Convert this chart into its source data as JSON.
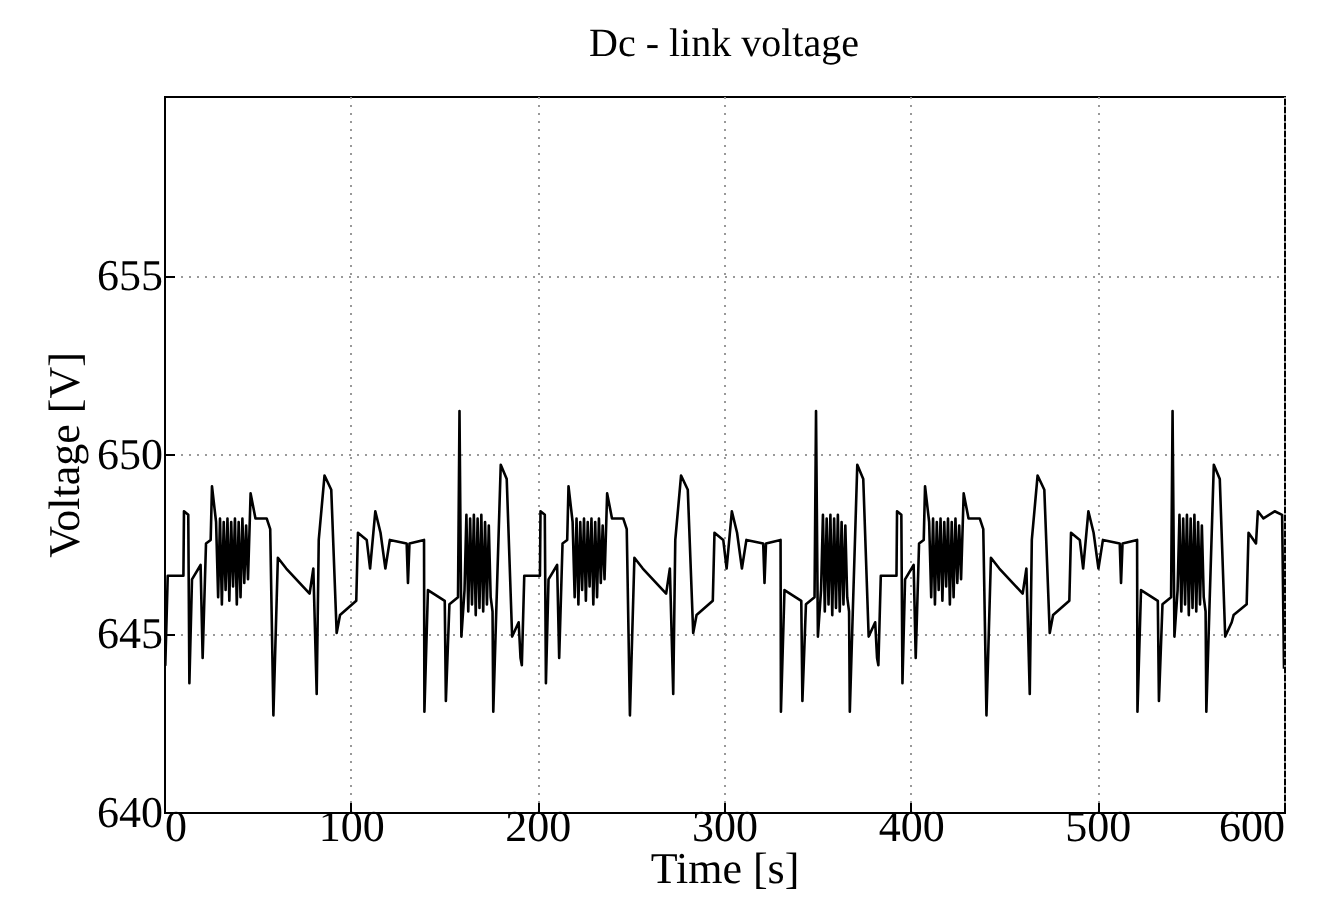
{
  "chart_data": {
    "type": "line",
    "title": "Dc - link voltage",
    "xlabel": "Time [s]",
    "ylabel": "Voltage [V]",
    "xlim": [
      0,
      600
    ],
    "xticks": [
      0,
      100,
      200,
      300,
      400,
      500,
      600
    ],
    "ylim": [
      640,
      660
    ],
    "yticks": [
      640,
      645,
      650,
      655
    ],
    "grid": true,
    "line_style": "solid",
    "series": [
      {
        "color": "#000000",
        "x": [
          0,
          0.7,
          2,
          10.4,
          10.7,
          13,
          13.6,
          15,
          19.6,
          20.7,
          22.5,
          25,
          25.7,
          27.9,
          29,
          30,
          31,
          32,
          33,
          34,
          35,
          36,
          37,
          38,
          39,
          40,
          41,
          42,
          43,
          44,
          45,
          46.4,
          49,
          55,
          56.9,
          58.6,
          61,
          65.5,
          78,
          80,
          81.8,
          82.9,
          86,
          89.6,
          92.5,
          94.3,
          103,
          103.9,
          108.6,
          110.4,
          113.2,
          116,
          118.6,
          121,
          130,
          130.7,
          131.5,
          139.3,
          139.5,
          141.4,
          150.4,
          151,
          152.9,
          157.5,
          158.3,
          159.3,
          161,
          162,
          163,
          164,
          165,
          166,
          167,
          168,
          169,
          170,
          171,
          172,
          173,
          174,
          175,
          176,
          176.4,
          178,
          180.4,
          183.6,
          186.5,
          190,
          191,
          191.7,
          193,
          201.4,
          201.7,
          204,
          204.6,
          206,
          210.6,
          211.7,
          213.5,
          216,
          216.7,
          218.9,
          220,
          221,
          222,
          223,
          224,
          225,
          226,
          227,
          228,
          229,
          230,
          231,
          232,
          233,
          234,
          235,
          236,
          237.4,
          240,
          246,
          247.9,
          249.6,
          252,
          256.5,
          269,
          271,
          272.8,
          273.9,
          277,
          280.6,
          283.5,
          285.3,
          294,
          294.9,
          299.6,
          301.4,
          304.2,
          307,
          309.6,
          312,
          321,
          321.7,
          322.5,
          330.3,
          330.5,
          332.4,
          341.4,
          342,
          343.9,
          348.5,
          349.3,
          350.3,
          352,
          353,
          354,
          355,
          356,
          357,
          358,
          359,
          360,
          361,
          362,
          363,
          364,
          365,
          366,
          367,
          367.4,
          369,
          371.4,
          374.6,
          377.5,
          381,
          382,
          382.7,
          384,
          392.4,
          392.7,
          395,
          395.6,
          397,
          401.6,
          402.7,
          404.5,
          407,
          407.7,
          409.9,
          411,
          412,
          413,
          414,
          415,
          416,
          417,
          418,
          419,
          420,
          421,
          422,
          423,
          424,
          425,
          426,
          427,
          428.4,
          431,
          437,
          438.9,
          440.6,
          443,
          447.5,
          460,
          462,
          463.8,
          464.9,
          468,
          471.6,
          474.5,
          476.3,
          485,
          485.9,
          490.6,
          492.4,
          495.2,
          498,
          500.6,
          503,
          512,
          512.7,
          513.5,
          521.3,
          521.5,
          523.4,
          532.4,
          533,
          534.9,
          539.5,
          540.3,
          541.3,
          543,
          544,
          545,
          546,
          547,
          548,
          549,
          550,
          551,
          552,
          553,
          554,
          555,
          556,
          557,
          558,
          558.4,
          560,
          562.4,
          565.6,
          568.5,
          572,
          573,
          580,
          581,
          585,
          586,
          589,
          595,
          599,
          600
        ],
        "values": [
          644.3,
          644.1,
          646.6,
          646.6,
          648.4,
          648.3,
          643.6,
          646.5,
          646.9,
          644.3,
          647.5,
          647.6,
          649.1,
          648.1,
          646,
          648.2,
          645.8,
          648.1,
          646.2,
          648.2,
          645.9,
          648.1,
          646.3,
          648.2,
          645.8,
          648.1,
          646.0,
          648.2,
          646.4,
          648.0,
          646.5,
          648.9,
          648.2,
          648.2,
          647.9,
          642.7,
          647.1,
          646.8,
          646.1,
          646.8,
          643.3,
          647.6,
          649.4,
          649.0,
          645.0,
          645.5,
          645.9,
          647.8,
          647.6,
          646.8,
          648.4,
          647.8,
          646.8,
          647.6,
          647.5,
          646.4,
          647.5,
          647.6,
          642.8,
          646.2,
          645.9,
          643.1,
          645.8,
          646,
          651.2,
          644.9,
          646.2,
          648.3,
          645.6,
          648.2,
          645.8,
          648.3,
          645.5,
          648.2,
          645.7,
          648.3,
          645.6,
          648.1,
          645.8,
          648.0,
          646.0,
          645.6,
          642.8,
          645.6,
          649.7,
          649.3,
          644.9,
          645.3,
          644.3,
          644.1,
          646.6,
          646.6,
          648.4,
          648.3,
          643.6,
          646.5,
          646.9,
          644.3,
          647.5,
          647.6,
          649.1,
          648.1,
          646,
          648.2,
          645.8,
          648.1,
          646.2,
          648.2,
          645.9,
          648.1,
          646.3,
          648.2,
          645.8,
          648.1,
          646.0,
          648.2,
          646.4,
          648.0,
          646.5,
          648.9,
          648.2,
          648.2,
          647.9,
          642.7,
          647.1,
          646.8,
          646.1,
          646.8,
          643.3,
          647.6,
          649.4,
          649.0,
          645.0,
          645.5,
          645.9,
          647.8,
          647.6,
          646.8,
          648.4,
          647.8,
          646.8,
          647.6,
          647.5,
          646.4,
          647.5,
          647.6,
          642.8,
          646.2,
          645.9,
          643.1,
          645.8,
          646,
          651.2,
          644.9,
          646.2,
          648.3,
          645.6,
          648.2,
          645.8,
          648.3,
          645.5,
          648.2,
          645.7,
          648.3,
          645.6,
          648.1,
          645.8,
          648.0,
          646.0,
          645.6,
          642.8,
          645.6,
          649.7,
          649.3,
          644.9,
          645.3,
          644.3,
          644.1,
          646.6,
          646.6,
          648.4,
          648.3,
          643.6,
          646.5,
          646.9,
          644.3,
          647.5,
          647.6,
          649.1,
          648.1,
          646,
          648.2,
          645.8,
          648.1,
          646.2,
          648.2,
          645.9,
          648.1,
          646.3,
          648.2,
          645.8,
          648.1,
          646.0,
          648.2,
          646.4,
          648.0,
          646.5,
          648.9,
          648.2,
          648.2,
          647.9,
          642.7,
          647.1,
          646.8,
          646.1,
          646.8,
          643.3,
          647.6,
          649.4,
          649.0,
          645.0,
          645.5,
          645.9,
          647.8,
          647.6,
          646.8,
          648.4,
          647.8,
          646.8,
          647.6,
          647.5,
          646.4,
          647.5,
          647.6,
          642.8,
          646.2,
          645.9,
          643.1,
          645.8,
          646,
          651.2,
          644.9,
          646.2,
          648.3,
          645.6,
          648.2,
          645.8,
          648.3,
          645.5,
          648.2,
          645.7,
          648.3,
          645.6,
          648.1,
          645.8,
          648.0,
          646.0,
          645.6,
          642.8,
          645.6,
          649.7,
          649.3,
          644.9,
          645.3,
          645.5,
          645.8,
          647.8,
          647.5,
          648.4,
          648.2,
          648.4,
          648.3,
          644
        ]
      }
    ]
  }
}
